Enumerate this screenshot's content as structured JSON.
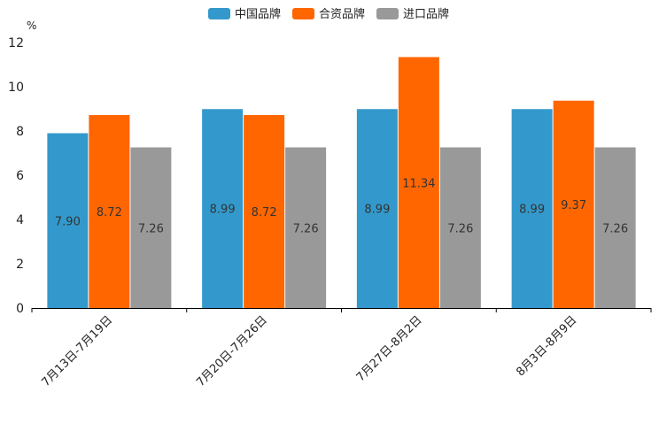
{
  "chart_data": {
    "type": "bar",
    "title": "",
    "xlabel": "",
    "ylabel": "%",
    "ylim": [
      0,
      12
    ],
    "yticks": [
      0,
      2,
      4,
      6,
      8,
      10,
      12
    ],
    "grid": false,
    "legend_position": "top-center",
    "categories": [
      "7月13日-7月19日",
      "7月20日-7月26日",
      "7月27日-8月2日",
      "8月3日-8月9日"
    ],
    "series": [
      {
        "name": "中国品牌",
        "color": "#3399cc",
        "values": [
          7.9,
          8.99,
          8.99,
          8.99
        ],
        "labels": [
          "7.90",
          "8.99",
          "8.99",
          "8.99"
        ]
      },
      {
        "name": "合资品牌",
        "color": "#ff6600",
        "values": [
          8.72,
          8.72,
          11.34,
          9.37
        ],
        "labels": [
          "8.72",
          "8.72",
          "11.34",
          "9.37"
        ]
      },
      {
        "name": "进口品牌",
        "color": "#999999",
        "values": [
          7.26,
          7.26,
          7.26,
          7.26
        ],
        "labels": [
          "7.26",
          "7.26",
          "7.26",
          "7.26"
        ]
      }
    ]
  }
}
